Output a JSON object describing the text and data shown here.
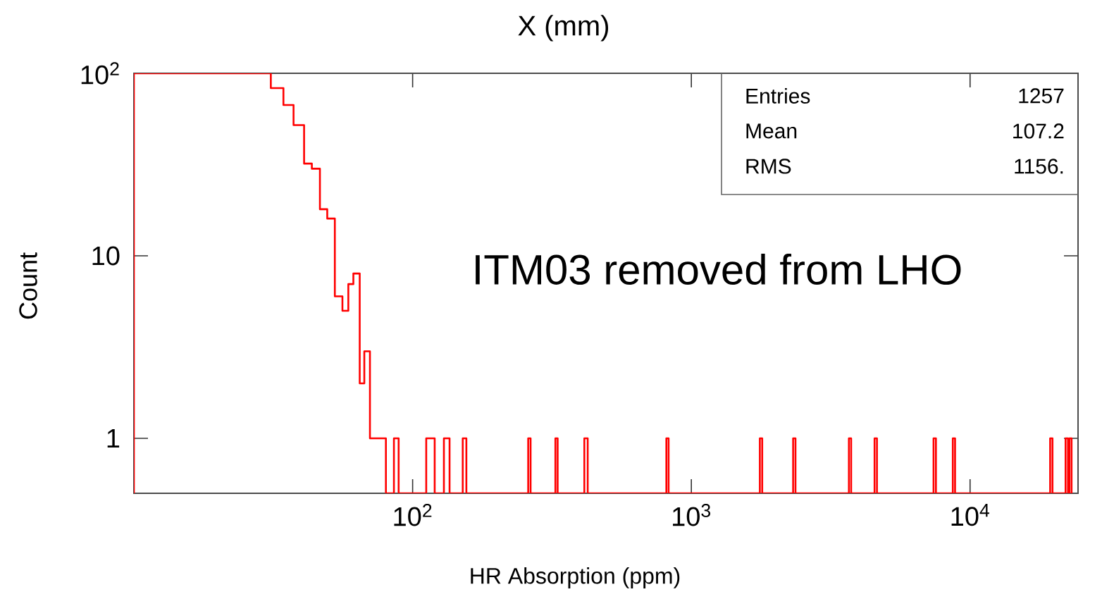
{
  "chart_data": {
    "type": "histogram",
    "title": "X (mm)",
    "xlabel": "HR Absorption (ppm)",
    "ylabel": "Count",
    "bins": [
      10,
      31.0,
      34.4,
      37.4,
      40.8,
      43.5,
      46.5,
      49.4,
      52.6,
      56.0,
      58.8,
      61.3,
      64.6,
      67.1,
      70.3,
      80.2,
      85.7,
      89.1,
      111.9,
      120.0,
      129.5,
      135.7,
      151.3,
      155.9,
      259.8,
      265.0,
      325.3,
      331.4,
      413.1,
      424.8,
      813.5,
      828.8,
      1761,
      1796,
      2318,
      2364,
      3675,
      3744,
      4543,
      4634,
      7396,
      7544,
      8670,
      8834,
      19380,
      19760,
      22010,
      22450,
      22710,
      23130
    ],
    "values": [
      100,
      83,
      67,
      52,
      32,
      30,
      18,
      16,
      6,
      5,
      7,
      8,
      2,
      3,
      1,
      null,
      1,
      null,
      1,
      null,
      1,
      null,
      1,
      null,
      1,
      null,
      1,
      null,
      1,
      null,
      1,
      null,
      1,
      null,
      1,
      null,
      1,
      null,
      1,
      null,
      1,
      null,
      1,
      null,
      1,
      null,
      1,
      null,
      1
    ],
    "color": "#ff0000",
    "log": "xy",
    "xlim": [
      10,
      24400
    ],
    "ylim": [
      0.5,
      100
    ],
    "xticks": [
      {
        "value": 100,
        "label": "10$^{2}$"
      },
      {
        "value": 1000,
        "label": "10$^{3}$"
      },
      {
        "value": 10000,
        "label": "10$^{4}$"
      }
    ],
    "yticks": [
      1,
      10,
      {
        "value": 100,
        "label": "10$^{2}$"
      }
    ],
    "grid": false,
    "annotations": [
      "Entries",
      "1257",
      "Mean",
      "107.2",
      "RMS",
      "1156.",
      "ITM03 removed from LHO"
    ]
  }
}
